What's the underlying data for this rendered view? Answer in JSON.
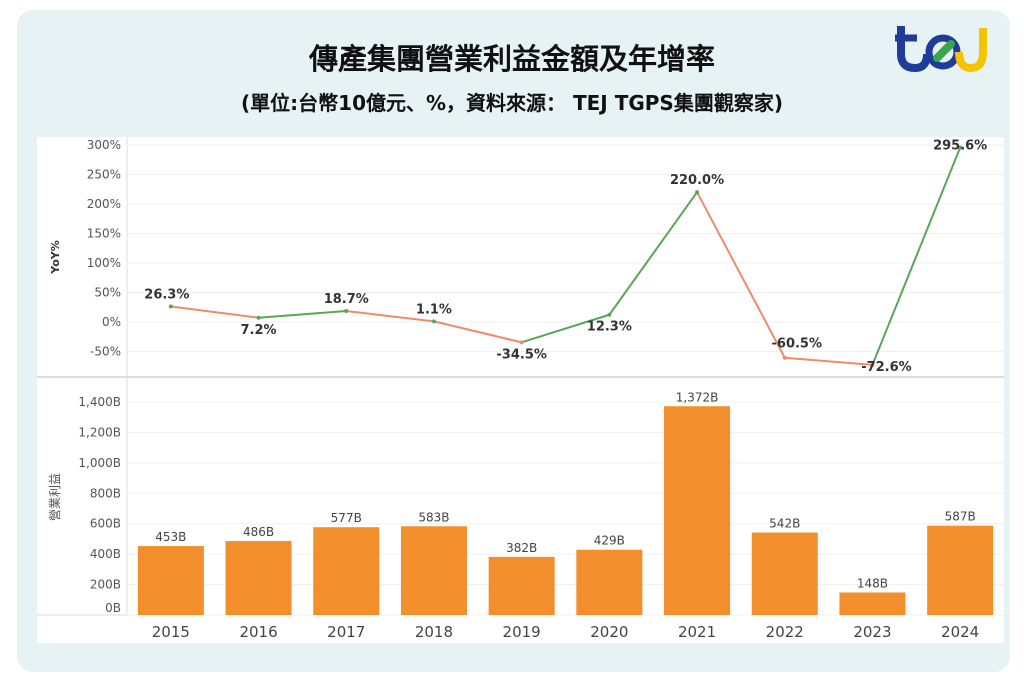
{
  "title": "傳產集團營業利益金額及年增率",
  "subtitle": "(單位:台幣10億元、%，資料來源： TEJ TGPS集團觀察家)",
  "logo_text": "tej",
  "chart_data": [
    {
      "type": "line",
      "ylabel": "YoY%",
      "ylim": [
        -75,
        300
      ],
      "yticks": [
        "300%",
        "250%",
        "200%",
        "150%",
        "100%",
        "50%",
        "0%",
        "-50%"
      ],
      "ytick_values": [
        300,
        250,
        200,
        150,
        100,
        50,
        0,
        -50
      ],
      "categories": [
        "2015",
        "2016",
        "2017",
        "2018",
        "2019",
        "2020",
        "2021",
        "2022",
        "2023",
        "2024"
      ],
      "values": [
        26.3,
        7.2,
        18.7,
        1.1,
        -34.5,
        12.3,
        220.0,
        -60.5,
        -72.6,
        295.6
      ],
      "labels": [
        "26.3%",
        "7.2%",
        "18.7%",
        "1.1%",
        "-34.5%",
        "12.3%",
        "220.0%",
        "-60.5%",
        "-72.6%",
        "295.6%"
      ],
      "colors": {
        "up": "#5aa55a",
        "down": "#ef8a6a"
      },
      "grid": true
    },
    {
      "type": "bar",
      "ylabel": "營業利益",
      "ylim": [
        0,
        1400
      ],
      "yticks": [
        "1,400B",
        "1,200B",
        "1,000B",
        "800B",
        "600B",
        "400B",
        "200B",
        "0B"
      ],
      "ytick_values": [
        1400,
        1200,
        1000,
        800,
        600,
        400,
        200,
        0
      ],
      "categories": [
        "2015",
        "2016",
        "2017",
        "2018",
        "2019",
        "2020",
        "2021",
        "2022",
        "2023",
        "2024"
      ],
      "values": [
        453,
        486,
        577,
        583,
        382,
        429,
        1372,
        542,
        148,
        587
      ],
      "labels": [
        "453B",
        "486B",
        "577B",
        "583B",
        "382B",
        "429B",
        "1,372B",
        "542B",
        "148B",
        "587B"
      ],
      "color": "#f28e2b",
      "grid": true
    }
  ]
}
